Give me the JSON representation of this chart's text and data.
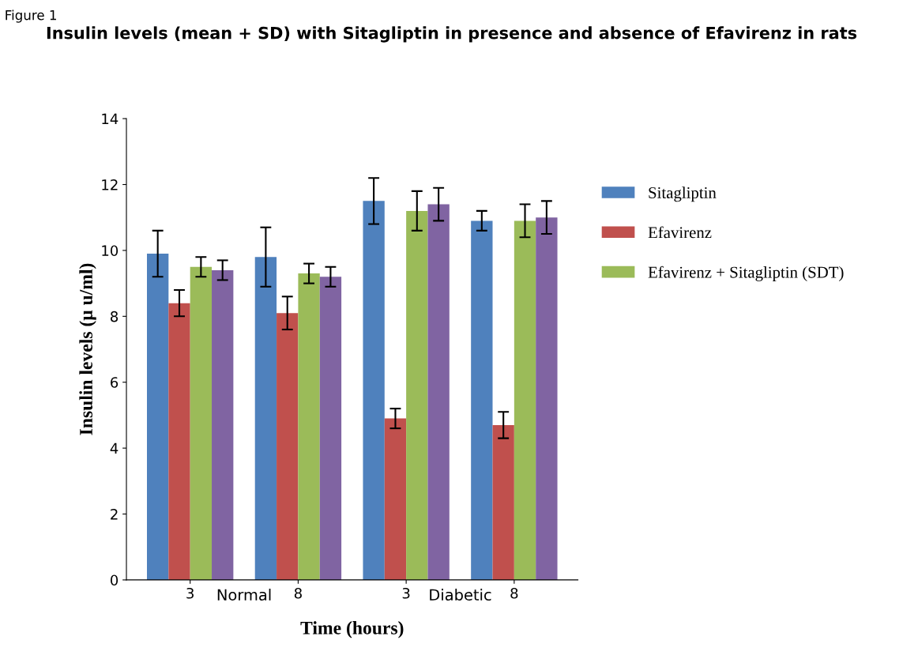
{
  "chart_data": {
    "type": "bar",
    "title": "Insulin levels (mean + SD) with Sitagliptin in presence and absence of Efavirenz in rats",
    "xlabel": "Time (hours)",
    "ylabel": "Insulin levels (μ u/ml)",
    "categories": [
      "3",
      "8",
      "3",
      "8"
    ],
    "series": [
      {
        "name": "Sitagliptin",
        "color": "#4f81bd",
        "values": [
          9.9,
          9.8,
          11.5,
          10.9
        ],
        "errors": [
          0.7,
          0.9,
          0.7,
          0.3
        ]
      },
      {
        "name": "Efavirenz",
        "color": "#c0504d",
        "values": [
          8.4,
          8.1,
          4.9,
          4.7
        ],
        "errors": [
          0.4,
          0.5,
          0.3,
          0.4
        ]
      },
      {
        "name": "Efavirenz + Sitagliptin (SDT)",
        "color": "#9bbb59",
        "values": [
          9.5,
          9.3,
          11.2,
          10.9
        ],
        "errors": [
          0.3,
          0.3,
          0.6,
          0.5
        ]
      },
      {
        "color": "#8064a2",
        "values": [
          9.4,
          9.2,
          11.4,
          11.0
        ],
        "errors": [
          0.3,
          0.3,
          0.5,
          0.5
        ]
      }
    ],
    "ylim": [
      0,
      14
    ],
    "yticks": [
      0,
      2,
      4,
      6,
      8,
      10,
      12,
      14
    ],
    "grid": false,
    "legend": "right",
    "annotations": [
      "Figure 1",
      "Normal",
      "Diabetic"
    ]
  }
}
